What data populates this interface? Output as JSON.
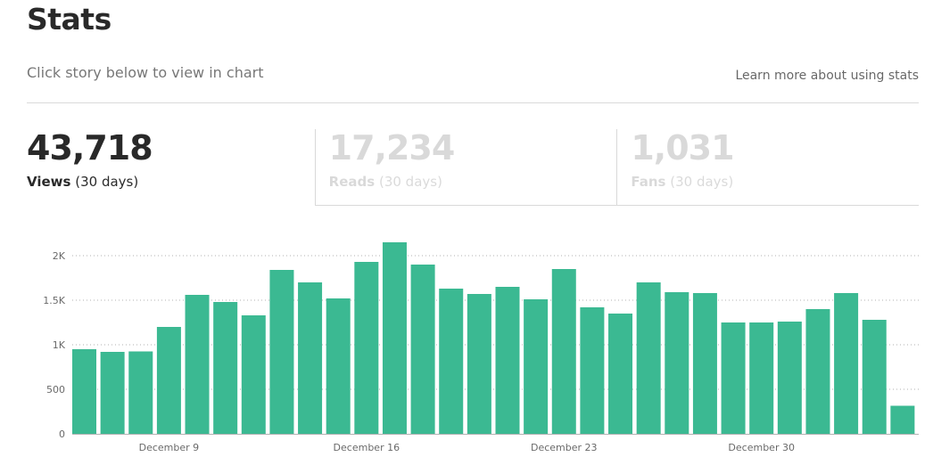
{
  "header": {
    "title": "Stats",
    "subtitle": "Click story below to view in chart",
    "learn_more": "Learn more about using stats"
  },
  "summary": [
    {
      "value": "43,718",
      "label": "Views",
      "period": "(30 days)",
      "active": true
    },
    {
      "value": "17,234",
      "label": "Reads",
      "period": "(30 days)",
      "active": false
    },
    {
      "value": "1,031",
      "label": "Fans",
      "period": "(30 days)",
      "active": false
    }
  ],
  "colors": {
    "bar": "#3bb992",
    "inactive_text": "rgba(0,0,0,0.15)"
  },
  "chart_data": {
    "type": "bar",
    "series": [
      {
        "values": [
          950,
          920,
          925,
          1200,
          1560,
          1480,
          1330,
          1840,
          1700,
          1520,
          1930,
          2150,
          1900,
          1630,
          1570,
          1650,
          1510,
          1850,
          1420,
          1350,
          1700,
          1590,
          1580,
          1250,
          1250,
          1260,
          1400,
          1580,
          1280,
          315
        ]
      }
    ],
    "x_tick_labels": [
      "December 9",
      "December 16",
      "December 23",
      "December 30"
    ],
    "x_tick_indices": [
      3,
      10,
      17,
      24
    ],
    "y_ticks": [
      0,
      500,
      1000,
      1500,
      2000
    ],
    "y_tick_labels": [
      "0",
      "500",
      "1K",
      "1.5K",
      "2K"
    ],
    "ylim": [
      0,
      2200
    ],
    "grid": true
  }
}
